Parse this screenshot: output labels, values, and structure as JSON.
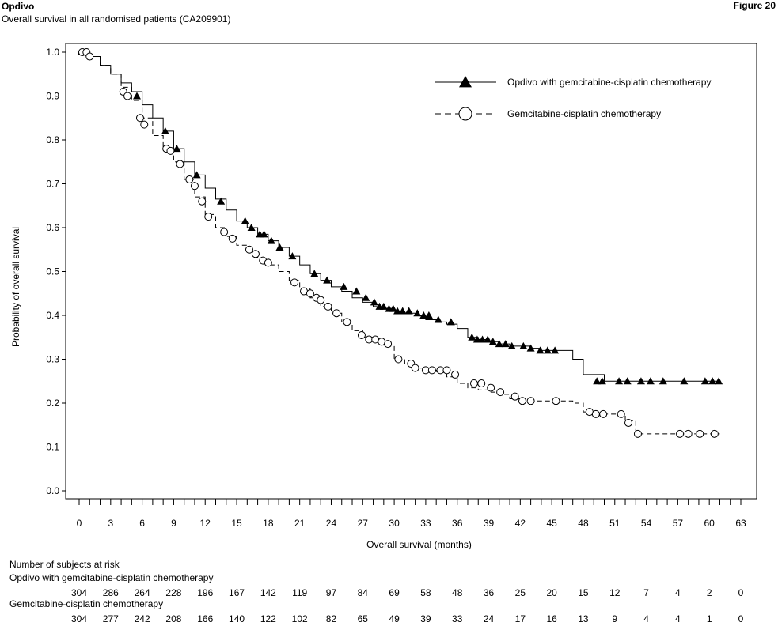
{
  "header": {
    "brand": "Opdivo",
    "subtitle": "Overall survival in all randomised patients (CA209901)",
    "figure_label": "Figure 20"
  },
  "chart_data": {
    "type": "line",
    "step": true,
    "title": "",
    "xlabel": "Overall survival (months)",
    "ylabel": "Probability of overall survival",
    "xlim": [
      0,
      63
    ],
    "ylim": [
      0,
      1
    ],
    "x_ticks": [
      0,
      3,
      6,
      9,
      12,
      15,
      18,
      21,
      24,
      27,
      30,
      33,
      36,
      39,
      42,
      45,
      48,
      51,
      54,
      57,
      60,
      63
    ],
    "y_ticks": [
      "0.0",
      "0.1",
      "0.2",
      "0.3",
      "0.4",
      "0.5",
      "0.6",
      "0.7",
      "0.8",
      "0.9",
      "1.0"
    ],
    "legend_position": "top-right",
    "grid": false,
    "series": [
      {
        "name": "Opdivo with gemcitabine-cisplatin chemotherapy",
        "marker": "triangle",
        "line": "solid",
        "color": "#000000",
        "x": [
          0,
          1,
          2,
          3,
          4,
          5,
          6,
          7,
          8,
          9,
          10,
          11,
          12,
          13,
          14,
          15,
          16,
          17,
          18,
          19,
          20,
          21,
          22,
          23,
          24,
          25,
          26,
          27,
          28,
          29,
          30,
          31,
          32,
          33,
          34,
          35,
          36,
          37,
          38,
          39,
          40,
          41,
          42,
          43,
          44,
          45,
          46,
          47,
          48,
          49,
          50,
          51,
          52,
          53,
          54,
          55,
          56,
          57,
          58,
          59,
          60,
          61
        ],
        "y": [
          1.0,
          0.99,
          0.97,
          0.95,
          0.93,
          0.91,
          0.88,
          0.85,
          0.82,
          0.78,
          0.75,
          0.72,
          0.69,
          0.665,
          0.64,
          0.615,
          0.6,
          0.585,
          0.57,
          0.555,
          0.535,
          0.515,
          0.495,
          0.48,
          0.465,
          0.455,
          0.44,
          0.43,
          0.42,
          0.415,
          0.41,
          0.405,
          0.4,
          0.39,
          0.385,
          0.38,
          0.37,
          0.35,
          0.345,
          0.34,
          0.335,
          0.33,
          0.33,
          0.325,
          0.32,
          0.32,
          0.32,
          0.3,
          0.265,
          0.265,
          0.25,
          0.25,
          0.25,
          0.25,
          0.25,
          0.25,
          0.25,
          0.25,
          0.25,
          0.25,
          0.25,
          0.25
        ],
        "censor_x": [
          0.2,
          0.4,
          0.6,
          0.8,
          5.5,
          8.2,
          9.3,
          11.2,
          13.5,
          15.8,
          16.4,
          17.2,
          17.6,
          18.3,
          19.1,
          20.3,
          22.4,
          23.6,
          25.2,
          26.4,
          27.3,
          28.1,
          28.6,
          29.0,
          29.5,
          29.9,
          30.3,
          30.8,
          31.4,
          32.2,
          32.8,
          33.3,
          34.2,
          35.4,
          37.4,
          37.9,
          38.4,
          38.9,
          39.4,
          40.0,
          40.6,
          41.2,
          42.3,
          43.0,
          43.9,
          44.6,
          45.3,
          49.3,
          49.8,
          51.4,
          52.2,
          53.5,
          54.4,
          55.6,
          57.6,
          59.6,
          60.3,
          60.9
        ],
        "censor_y": [
          1.0,
          1.0,
          1.0,
          1.0,
          0.9,
          0.82,
          0.78,
          0.72,
          0.66,
          0.615,
          0.6,
          0.585,
          0.585,
          0.57,
          0.555,
          0.535,
          0.495,
          0.48,
          0.465,
          0.455,
          0.44,
          0.43,
          0.42,
          0.42,
          0.415,
          0.415,
          0.41,
          0.41,
          0.41,
          0.405,
          0.4,
          0.4,
          0.39,
          0.385,
          0.35,
          0.345,
          0.345,
          0.345,
          0.34,
          0.335,
          0.335,
          0.33,
          0.33,
          0.325,
          0.32,
          0.32,
          0.32,
          0.25,
          0.25,
          0.25,
          0.25,
          0.25,
          0.25,
          0.25,
          0.25,
          0.25,
          0.25,
          0.25
        ]
      },
      {
        "name": "Gemcitabine-cisplatin chemotherapy",
        "marker": "circle",
        "line": "dashed",
        "color": "#000000",
        "x": [
          0,
          1,
          2,
          3,
          4,
          5,
          6,
          7,
          8,
          9,
          10,
          11,
          12,
          13,
          14,
          15,
          16,
          17,
          18,
          19,
          20,
          21,
          22,
          23,
          24,
          25,
          26,
          27,
          28,
          29,
          30,
          31,
          32,
          33,
          34,
          35,
          36,
          37,
          38,
          39,
          40,
          41,
          42,
          43,
          44,
          45,
          46,
          47,
          48,
          49,
          50,
          51,
          52,
          53,
          54,
          55,
          56,
          57,
          58,
          59,
          60,
          61
        ],
        "y": [
          1.0,
          0.99,
          0.97,
          0.95,
          0.92,
          0.89,
          0.85,
          0.81,
          0.78,
          0.75,
          0.71,
          0.67,
          0.63,
          0.6,
          0.58,
          0.56,
          0.545,
          0.53,
          0.515,
          0.5,
          0.48,
          0.46,
          0.44,
          0.42,
          0.405,
          0.385,
          0.365,
          0.35,
          0.34,
          0.33,
          0.3,
          0.29,
          0.28,
          0.275,
          0.27,
          0.26,
          0.245,
          0.235,
          0.23,
          0.225,
          0.22,
          0.21,
          0.205,
          0.205,
          0.205,
          0.205,
          0.205,
          0.2,
          0.18,
          0.175,
          0.175,
          0.175,
          0.16,
          0.13,
          0.13,
          0.13,
          0.13,
          0.13,
          0.13,
          0.13,
          0.13,
          0.13
        ],
        "censor_x": [
          0.3,
          0.7,
          1.0,
          4.2,
          4.6,
          5.8,
          6.2,
          8.3,
          8.7,
          9.6,
          10.5,
          11.0,
          11.7,
          12.3,
          13.8,
          14.6,
          16.2,
          16.8,
          17.5,
          18.0,
          20.5,
          21.4,
          22.0,
          22.6,
          23.0,
          23.7,
          24.5,
          25.5,
          26.9,
          27.6,
          28.2,
          28.8,
          29.4,
          30.4,
          31.6,
          32.0,
          33.0,
          33.6,
          34.4,
          35.0,
          35.8,
          37.6,
          38.3,
          39.2,
          40.1,
          41.5,
          42.2,
          43.0,
          45.4,
          48.6,
          49.2,
          49.9,
          51.6,
          52.3,
          53.2,
          57.2,
          58.0,
          59.1,
          60.5
        ],
        "censor_y": [
          1.0,
          1.0,
          0.99,
          0.91,
          0.9,
          0.85,
          0.835,
          0.78,
          0.775,
          0.745,
          0.71,
          0.695,
          0.66,
          0.625,
          0.59,
          0.575,
          0.55,
          0.54,
          0.525,
          0.52,
          0.475,
          0.455,
          0.45,
          0.44,
          0.435,
          0.42,
          0.405,
          0.385,
          0.355,
          0.345,
          0.345,
          0.34,
          0.335,
          0.3,
          0.29,
          0.28,
          0.275,
          0.275,
          0.275,
          0.275,
          0.265,
          0.245,
          0.245,
          0.235,
          0.225,
          0.215,
          0.205,
          0.205,
          0.205,
          0.18,
          0.175,
          0.175,
          0.175,
          0.155,
          0.13,
          0.13,
          0.13,
          0.13,
          0.13
        ]
      }
    ]
  },
  "risk_table": {
    "heading": "Number of subjects at risk",
    "groups": [
      {
        "label": "Opdivo with gemcitabine-cisplatin chemotherapy",
        "values": [
          "304",
          "286",
          "264",
          "228",
          "196",
          "167",
          "142",
          "119",
          "97",
          "84",
          "69",
          "58",
          "48",
          "36",
          "25",
          "20",
          "15",
          "12",
          "7",
          "4",
          "2",
          "0"
        ]
      },
      {
        "label": "Gemcitabine-cisplatin chemotherapy",
        "values": [
          "304",
          "277",
          "242",
          "208",
          "166",
          "140",
          "122",
          "102",
          "82",
          "65",
          "49",
          "39",
          "33",
          "24",
          "17",
          "16",
          "13",
          "9",
          "4",
          "4",
          "1",
          "0"
        ]
      }
    ]
  }
}
